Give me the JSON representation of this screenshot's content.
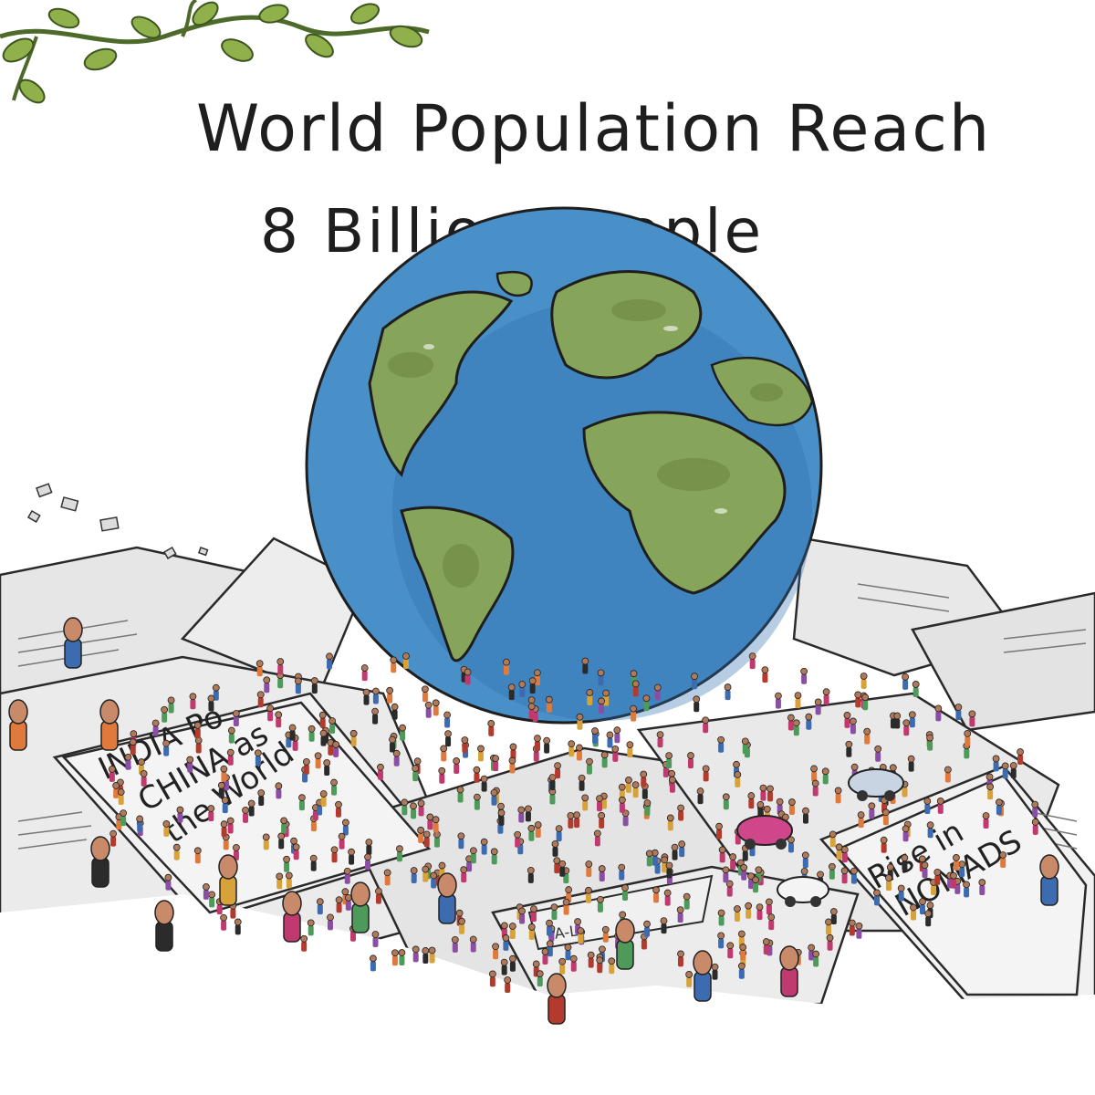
{
  "title": {
    "line1": "World Population Reach",
    "line2": "8 Billion People"
  },
  "newspapers": {
    "india_headline": [
      "INDIA Po",
      "CHINA as",
      "the World"
    ],
    "nomad_headline": [
      "Rise in",
      "NOMADS"
    ],
    "small_label": "PA-L"
  },
  "colors": {
    "ocean": "#4a90c8",
    "ocean_dark": "#2f6fae",
    "land": "#86a45a",
    "land_dark": "#6f8a44",
    "paper": "#e9e9e9",
    "paper_shadow": "#bdbdbd",
    "ink": "#1e1e1e",
    "leaf": "#8fb04a"
  }
}
